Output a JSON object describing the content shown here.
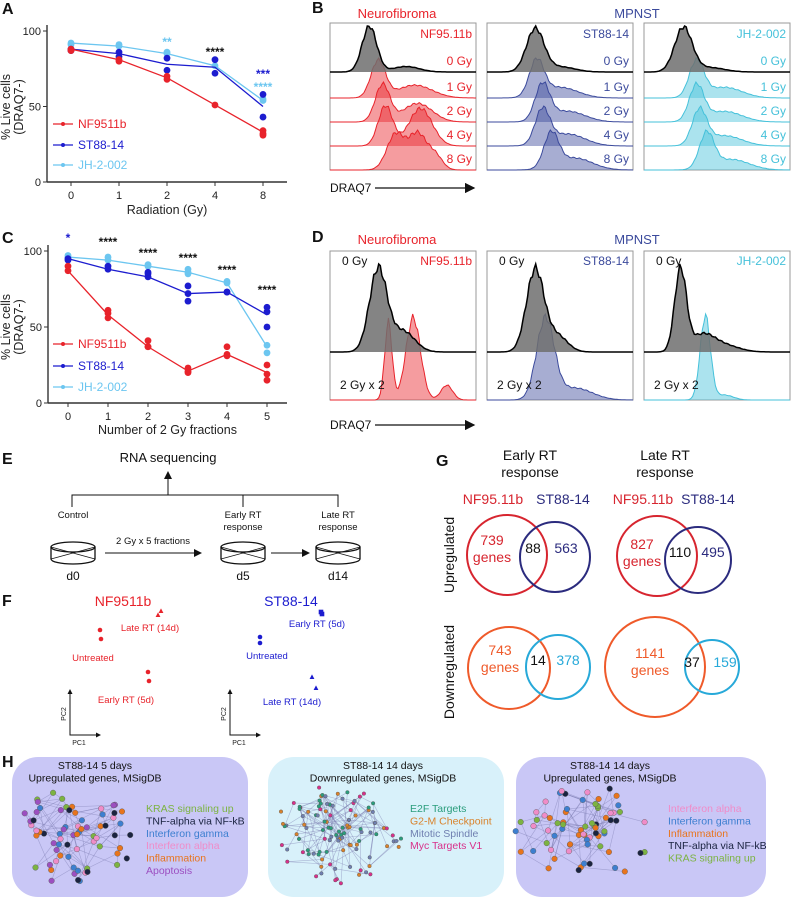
{
  "panel_letters": {
    "A": "A",
    "B": "B",
    "C": "C",
    "D": "D",
    "E": "E",
    "F": "F",
    "G": "G",
    "H": "H"
  },
  "colors": {
    "nf": "#e8232b",
    "st": "#1c1ccf",
    "jh": "#6cc6f0",
    "black": "#111111",
    "st_hist": "#3b4a9c",
    "jh_hist": "#45c1da",
    "gray_hist": "#6e6e6e",
    "venn_red": "#d7252f",
    "venn_navy": "#2b2b7e",
    "venn_orange": "#ef5a2a",
    "venn_cyan": "#27a9d9",
    "h_purple": "#c9c7f6",
    "h_blue": "#d8f1fa"
  },
  "chart_data": [
    {
      "panel": "A",
      "type": "line",
      "xlabel": "Radiation (Gy)",
      "ylabel": [
        "% Live cells",
        "(DRAQ7-)"
      ],
      "categories": [
        "0",
        "1",
        "2",
        "4",
        "8"
      ],
      "yticks": [
        "0",
        "50",
        "100"
      ],
      "ylim": [
        0,
        100
      ],
      "grid": false,
      "legend": "left",
      "series": [
        {
          "name": "NF9511b",
          "color": "#e8232b",
          "mean": [
            88,
            81,
            69,
            51,
            33
          ],
          "replicates": [
            [
              88,
              87
            ],
            [
              81,
              80
            ],
            [
              70,
              68
            ],
            [
              51
            ],
            [
              34,
              32,
              31
            ]
          ]
        },
        {
          "name": "ST88-14",
          "color": "#1c1ccf",
          "mean": [
            88,
            85,
            78,
            76,
            50
          ],
          "replicates": [
            [
              88,
              87
            ],
            [
              86,
              83
            ],
            [
              82,
              74
            ],
            [
              81,
              72
            ],
            [
              58,
              43
            ]
          ]
        },
        {
          "name": "JH-2-002",
          "color": "#6cc6f0",
          "mean": [
            92,
            90,
            85,
            77,
            54
          ],
          "replicates": [
            [
              92,
              91
            ],
            [
              91,
              90
            ],
            [
              86,
              85
            ],
            [
              77
            ],
            [
              55,
              54
            ]
          ]
        }
      ],
      "annotations": [
        {
          "category": "2",
          "text": "**",
          "color": "#6cc6f0"
        },
        {
          "category": "4",
          "text": "****",
          "color": "#111111"
        },
        {
          "category": "8",
          "text": "***",
          "color": "#1c1ccf"
        },
        {
          "category": "8",
          "text": "****",
          "color": "#6cc6f0"
        }
      ]
    },
    {
      "panel": "C",
      "type": "line",
      "xlabel": "Number of 2 Gy fractions",
      "ylabel": [
        "% Live cells",
        "(DRAQ7-)"
      ],
      "categories": [
        "0",
        "1",
        "2",
        "3",
        "4",
        "5"
      ],
      "yticks": [
        "0",
        "50",
        "100"
      ],
      "ylim": [
        0,
        100
      ],
      "grid": false,
      "legend": "left",
      "series": [
        {
          "name": "NF9511b",
          "color": "#e8232b",
          "mean": [
            87,
            58,
            37,
            21,
            32,
            20
          ],
          "replicates": [
            [
              87,
              90
            ],
            [
              61,
              59,
              56
            ],
            [
              41,
              37,
              37
            ],
            [
              23,
              21,
              20
            ],
            [
              37,
              31,
              32
            ],
            [
              25,
              19,
              15
            ]
          ]
        },
        {
          "name": "ST88-14",
          "color": "#1c1ccf",
          "mean": [
            95,
            88,
            83,
            72,
            73,
            58
          ],
          "replicates": [
            [
              95,
              94
            ],
            [
              88,
              90
            ],
            [
              85,
              83,
              86
            ],
            [
              77,
              72,
              67
            ],
            [
              73,
              73
            ],
            [
              63,
              60,
              50
            ]
          ]
        },
        {
          "name": "JH-2-002",
          "color": "#6cc6f0",
          "mean": [
            96,
            94,
            90,
            86,
            79,
            37
          ],
          "replicates": [
            [
              96,
              97
            ],
            [
              96,
              94
            ],
            [
              91,
              90
            ],
            [
              88,
              86,
              85
            ],
            [
              80,
              79
            ],
            [
              38,
              33
            ]
          ]
        }
      ],
      "annotations": [
        {
          "category": "0",
          "text": "*",
          "color": "#1c1ccf"
        },
        {
          "category": "1",
          "text": "****",
          "color": "#111111"
        },
        {
          "category": "2",
          "text": "****",
          "color": "#111111"
        },
        {
          "category": "3",
          "text": "****",
          "color": "#111111"
        },
        {
          "category": "4",
          "text": "****",
          "color": "#111111"
        },
        {
          "category": "5",
          "text": "****",
          "color": "#111111"
        }
      ]
    }
  ],
  "panel_b": {
    "group_left": "Neurofibroma",
    "group_right": "MPNST",
    "cell_lines": [
      "NF95.11b",
      "ST88-14",
      "JH-2-002"
    ],
    "doses": [
      "0 Gy",
      "1 Gy",
      "2 Gy",
      "4 Gy",
      "8 Gy"
    ],
    "axis_label": "DRAQ7"
  },
  "panel_d": {
    "group_left": "Neurofibroma",
    "group_right": "MPNST",
    "cell_lines": [
      "NF95.11b",
      "ST88-14",
      "JH-2-002"
    ],
    "control_label": "0 Gy",
    "treated_label": "2 Gy x 2",
    "axis_label": "DRAQ7"
  },
  "panel_e": {
    "title": "RNA sequencing",
    "stages": [
      {
        "label": [
          "Control"
        ],
        "day": "d0"
      },
      {
        "label": [
          "Early RT",
          "response"
        ],
        "day": "d5"
      },
      {
        "label": [
          "Late RT",
          "response"
        ],
        "day": "d14"
      }
    ],
    "treatment": "2 Gy x 5 fractions"
  },
  "panel_f": {
    "plots": [
      {
        "title": "NF9511b",
        "color": "#e8232b",
        "labels": {
          "late": "Late RT (14d)",
          "untreated": "Untreated",
          "early": "Early RT (5d)"
        }
      },
      {
        "title": "ST88-14",
        "color": "#1c1ccf",
        "labels": {
          "early": "Early RT (5d)",
          "untreated": "Untreated",
          "late": "Late RT (14d)"
        }
      }
    ],
    "x_axis": "PC1",
    "y_axis": "PC2"
  },
  "panel_g": {
    "columns": [
      [
        "Early RT",
        "response"
      ],
      [
        "Late RT",
        "response"
      ]
    ],
    "set_a": "NF95.11b",
    "set_b": "ST88-14",
    "rows": [
      "Upregulated",
      "Downregulated"
    ],
    "genes_word": "genes",
    "venns": [
      {
        "row": "Upregulated",
        "column": "Early RT response",
        "a_only": "739",
        "overlap": "88",
        "b_only": "563"
      },
      {
        "row": "Upregulated",
        "column": "Late RT response",
        "a_only": "827",
        "overlap": "110",
        "b_only": "495"
      },
      {
        "row": "Downregulated",
        "column": "Early RT response",
        "a_only": "743",
        "overlap": "14",
        "b_only": "378"
      },
      {
        "row": "Downregulated",
        "column": "Late RT response",
        "a_only": "1141",
        "overlap": "37",
        "b_only": "159"
      }
    ]
  },
  "panel_h": {
    "networks": [
      {
        "title": [
          "ST88-14 5 days",
          "Upregulated genes, MSigDB"
        ],
        "background": "#c9c7f6",
        "legend": [
          {
            "label": "KRAS signaling up",
            "color": "#7cb342"
          },
          {
            "label": "TNF-alpha via NF-kB",
            "color": "#1a2340"
          },
          {
            "label": "Interferon gamma",
            "color": "#3d7fd0"
          },
          {
            "label": "Interferon alpha",
            "color": "#f08cc8"
          },
          {
            "label": "Inflammation",
            "color": "#e8741c"
          },
          {
            "label": "Apoptosis",
            "color": "#9c4fc0"
          }
        ]
      },
      {
        "title": [
          "ST88-14 14 days",
          "Downregulated genes, MSigDB"
        ],
        "background": "#d8f1fa",
        "legend": [
          {
            "label": "E2F Targets",
            "color": "#2a9d7c"
          },
          {
            "label": "G2-M Checkpoint",
            "color": "#d9822b"
          },
          {
            "label": "Mitotic Spindle",
            "color": "#6f7fb0"
          },
          {
            "label": "Myc Targets V1",
            "color": "#d8308a"
          }
        ]
      },
      {
        "title": [
          "ST88-14 14 days",
          "Upregulated genes, MSigDB"
        ],
        "background": "#c9c7f6",
        "legend": [
          {
            "label": "Interferon alpha",
            "color": "#f08cc8"
          },
          {
            "label": "Interferon gamma",
            "color": "#3d7fd0"
          },
          {
            "label": "Inflammation",
            "color": "#e8741c"
          },
          {
            "label": "TNF-alpha via NF-kB",
            "color": "#1a2340"
          },
          {
            "label": "KRAS signaling up",
            "color": "#7cb342"
          }
        ]
      }
    ]
  }
}
